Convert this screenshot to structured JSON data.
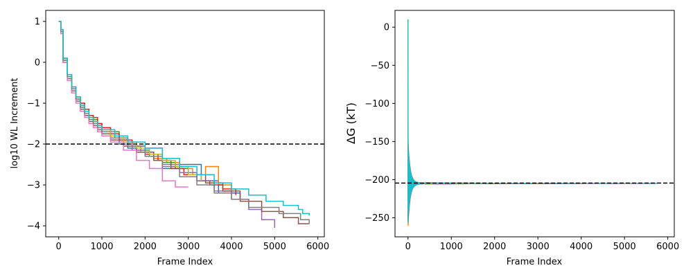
{
  "chart_data": [
    {
      "type": "line",
      "title": "",
      "xlabel": "Frame Index",
      "ylabel": "log10 WL Increment",
      "xlim": [
        -300,
        6150
      ],
      "ylim": [
        -4.27,
        1.27
      ],
      "xticks": [
        0,
        1000,
        2000,
        3000,
        4000,
        5000,
        6000
      ],
      "yticks": [
        1,
        0,
        -1,
        -2,
        -3,
        -4
      ],
      "grid": false,
      "legend": "none",
      "reference_line": {
        "y": -2,
        "style": "dashed",
        "color": "#000000"
      },
      "series": [
        {
          "color": "#1f77b4",
          "x": [
            0,
            50,
            100,
            200,
            300,
            400,
            500,
            600,
            700,
            800,
            900,
            1000,
            1200,
            1400,
            1600,
            1800,
            2000,
            2400,
            2800,
            3300,
            3700,
            4200
          ],
          "y": [
            1,
            0.8,
            0.1,
            -0.3,
            -0.6,
            -0.85,
            -1.0,
            -1.15,
            -1.3,
            -1.4,
            -1.5,
            -1.6,
            -1.8,
            -1.95,
            -2.1,
            -2.2,
            -2.1,
            -2.6,
            -2.5,
            -2.9,
            -3.2,
            -3.35
          ]
        },
        {
          "color": "#ff7f0e",
          "x": [
            0,
            50,
            100,
            200,
            300,
            400,
            500,
            600,
            700,
            800,
            900,
            1000,
            1200,
            1400,
            1600,
            1900,
            2200,
            2500,
            2800,
            3100,
            3400,
            3700,
            4000
          ],
          "y": [
            1,
            0.75,
            0.05,
            -0.35,
            -0.65,
            -0.9,
            -1.05,
            -1.2,
            -1.35,
            -1.45,
            -1.55,
            -1.65,
            -1.8,
            -1.9,
            -2.05,
            -2.2,
            -2.35,
            -2.45,
            -2.6,
            -2.75,
            -2.55,
            -3.0,
            -3.25
          ]
        },
        {
          "color": "#2ca02c",
          "x": [
            0,
            50,
            100,
            200,
            300,
            400,
            500,
            600,
            700,
            800,
            900,
            1000,
            1200,
            1400,
            1600,
            1800,
            2100,
            2400,
            2700,
            3000,
            3300,
            3600
          ],
          "y": [
            1,
            0.8,
            0.1,
            -0.3,
            -0.6,
            -0.85,
            -1.05,
            -1.15,
            -1.3,
            -1.4,
            -1.5,
            -1.6,
            -1.7,
            -1.85,
            -1.95,
            -2.15,
            -2.3,
            -2.45,
            -2.6,
            -2.75,
            -2.9,
            -3.05
          ]
        },
        {
          "color": "#d62728",
          "x": [
            0,
            50,
            100,
            200,
            300,
            400,
            500,
            600,
            700,
            800,
            900,
            1000,
            1200,
            1400,
            1700,
            2000,
            2300,
            2600,
            2900,
            3200,
            3500,
            3800,
            4100
          ],
          "y": [
            1,
            0.8,
            0.1,
            -0.3,
            -0.6,
            -0.85,
            -1.0,
            -1.15,
            -1.3,
            -1.35,
            -1.5,
            -1.6,
            -1.75,
            -1.9,
            -2.05,
            -2.25,
            -2.4,
            -2.6,
            -2.75,
            -2.9,
            -3.0,
            -3.1,
            -3.25
          ]
        },
        {
          "color": "#9467bd",
          "x": [
            0,
            50,
            100,
            200,
            300,
            400,
            500,
            600,
            700,
            800,
            900,
            1000,
            1200,
            1400,
            1700,
            2000,
            2400,
            2800,
            3200,
            3600,
            4000,
            4400,
            4700,
            5000
          ],
          "y": [
            1,
            0.75,
            0.05,
            -0.35,
            -0.65,
            -0.9,
            -1.1,
            -1.25,
            -1.4,
            -1.5,
            -1.6,
            -1.7,
            -1.85,
            -2.0,
            -2.15,
            -2.3,
            -2.5,
            -2.7,
            -2.9,
            -3.15,
            -3.35,
            -3.6,
            -3.85,
            -4.05
          ]
        },
        {
          "color": "#8c564b",
          "x": [
            0,
            50,
            100,
            200,
            300,
            400,
            500,
            600,
            700,
            800,
            900,
            1000,
            1200,
            1500,
            1800,
            2200,
            2600,
            3000,
            3400,
            3800,
            4200,
            4700,
            5200,
            5550,
            5800
          ],
          "y": [
            1,
            0.75,
            0.0,
            -0.4,
            -0.7,
            -0.95,
            -1.15,
            -1.3,
            -1.45,
            -1.55,
            -1.65,
            -1.75,
            -1.9,
            -2.05,
            -2.2,
            -2.4,
            -2.55,
            -2.75,
            -2.95,
            -3.15,
            -3.4,
            -3.65,
            -3.8,
            -3.95,
            -3.95
          ]
        },
        {
          "color": "#e377c2",
          "x": [
            0,
            50,
            100,
            200,
            300,
            400,
            500,
            600,
            700,
            800,
            900,
            1000,
            1200,
            1500,
            1800,
            2100,
            2400,
            2700,
            3000
          ],
          "y": [
            1,
            0.7,
            0.0,
            -0.45,
            -0.75,
            -1.0,
            -1.2,
            -1.35,
            -1.5,
            -1.6,
            -1.7,
            -1.8,
            -1.95,
            -2.15,
            -2.4,
            -2.6,
            -2.9,
            -3.05,
            -3.05
          ]
        },
        {
          "color": "#7f7f7f",
          "x": [
            0,
            50,
            100,
            200,
            300,
            400,
            500,
            600,
            700,
            800,
            900,
            1000,
            1300,
            1600,
            2000,
            2400,
            2800,
            3200,
            3600,
            4000,
            4400,
            5100,
            5600,
            5800
          ],
          "y": [
            1,
            0.75,
            0.05,
            -0.35,
            -0.65,
            -0.9,
            -1.1,
            -1.25,
            -1.4,
            -1.5,
            -1.6,
            -1.7,
            -1.85,
            -2.05,
            -2.3,
            -2.55,
            -2.8,
            -3.0,
            -3.2,
            -3.35,
            -3.55,
            -3.7,
            -3.85,
            -3.95
          ]
        },
        {
          "color": "#bcbd22",
          "x": [
            0,
            50,
            100,
            200,
            300,
            400,
            500,
            600,
            700,
            800,
            900,
            1000,
            1200,
            1500,
            1800,
            2100,
            2400,
            2700,
            3000,
            3300
          ],
          "y": [
            1,
            0.8,
            0.1,
            -0.3,
            -0.6,
            -0.85,
            -1.05,
            -1.2,
            -1.35,
            -1.45,
            -1.55,
            -1.65,
            -1.8,
            -1.95,
            -2.1,
            -2.25,
            -2.4,
            -2.55,
            -2.75,
            -2.9
          ]
        },
        {
          "color": "#17becf",
          "x": [
            0,
            50,
            100,
            200,
            300,
            400,
            500,
            600,
            700,
            800,
            900,
            1000,
            1300,
            1600,
            2000,
            2400,
            2800,
            3200,
            3600,
            4000,
            4400,
            4800,
            5200,
            5550,
            5650,
            5800
          ],
          "y": [
            1,
            0.8,
            0.1,
            -0.3,
            -0.6,
            -0.85,
            -1.05,
            -1.2,
            -1.35,
            -1.45,
            -1.55,
            -1.65,
            -1.8,
            -1.95,
            -2.1,
            -2.35,
            -2.55,
            -2.75,
            -2.95,
            -3.1,
            -3.25,
            -3.4,
            -3.5,
            -3.6,
            -3.7,
            -3.75
          ]
        }
      ]
    },
    {
      "type": "line",
      "title": "",
      "xlabel": "Frame Index",
      "ylabel": "ΔG (kT)",
      "xlim": [
        -300,
        6150
      ],
      "ylim": [
        -275,
        22
      ],
      "xticks": [
        0,
        1000,
        2000,
        3000,
        4000,
        5000,
        6000
      ],
      "yticks": [
        0,
        -50,
        -100,
        -150,
        -200,
        -250
      ],
      "grid": false,
      "legend": "none",
      "reference_line": {
        "y": -204.5,
        "style": "dashed",
        "color": "#000000"
      },
      "converged_value": -205,
      "series_end_frames": [
        4200,
        4000,
        3600,
        4100,
        5000,
        5800,
        3000,
        5800,
        3300,
        5800
      ],
      "series_colors": [
        "#1f77b4",
        "#ff7f0e",
        "#2ca02c",
        "#d62728",
        "#9467bd",
        "#8c564b",
        "#e377c2",
        "#7f7f7f",
        "#bcbd22",
        "#17becf"
      ]
    }
  ]
}
